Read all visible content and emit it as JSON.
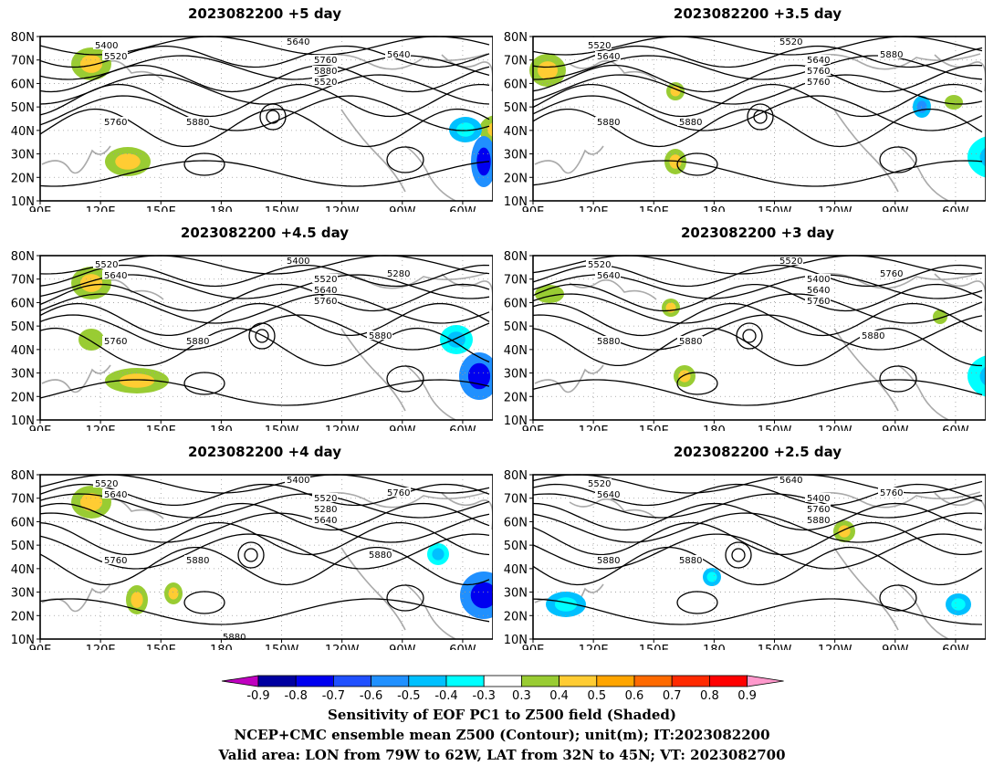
{
  "panels": [
    {
      "title": "2023082200 +5 day",
      "lead_days": 5.0,
      "contour_labels": [
        "5400",
        "5520",
        "5640",
        "5760",
        "5880",
        "5520",
        "5640",
        "5760",
        "5880"
      ]
    },
    {
      "title": "2023082200 +3.5 day",
      "lead_days": 3.5,
      "contour_labels": [
        "5520",
        "5640",
        "5520",
        "5640",
        "5760",
        "5760",
        "5880",
        "5880",
        "5880"
      ]
    },
    {
      "title": "2023082200 +4.5 day",
      "lead_days": 4.5,
      "contour_labels": [
        "5520",
        "5640",
        "5400",
        "5520",
        "5640",
        "5760",
        "5280",
        "5760",
        "5880",
        "5880"
      ]
    },
    {
      "title": "2023082200 +3 day",
      "lead_days": 3.0,
      "contour_labels": [
        "5520",
        "5640",
        "5520",
        "5400",
        "5640",
        "5760",
        "5760",
        "5880",
        "5880",
        "5880"
      ]
    },
    {
      "title": "2023082200 +4 day",
      "lead_days": 4.0,
      "contour_labels": [
        "5520",
        "5640",
        "5400",
        "5520",
        "5280",
        "5640",
        "5760",
        "5760",
        "5880",
        "5880",
        "5880"
      ]
    },
    {
      "title": "2023082200 +2.5 day",
      "lead_days": 2.5,
      "contour_labels": [
        "5520",
        "5640",
        "5640",
        "5400",
        "5760",
        "5880",
        "5760",
        "5880",
        "5880"
      ]
    }
  ],
  "axes": {
    "lon_ticks": [
      "90E",
      "120E",
      "150E",
      "180",
      "150W",
      "120W",
      "90W",
      "60W"
    ],
    "lat_ticks": [
      "80N",
      "70N",
      "60N",
      "50N",
      "40N",
      "30N",
      "20N",
      "10N"
    ]
  },
  "colorbar": {
    "ticks": [
      "-0.9",
      "-0.8",
      "-0.7",
      "-0.6",
      "-0.5",
      "-0.4",
      "-0.3",
      "0.3",
      "0.4",
      "0.5",
      "0.6",
      "0.7",
      "0.8",
      "0.9"
    ],
    "colors": [
      "#c000c0",
      "#0000a0",
      "#0000f0",
      "#2050ff",
      "#2090ff",
      "#00c0ff",
      "#00ffff",
      "#ffffff",
      "#99cc33",
      "#ffcc33",
      "#ffa500",
      "#ff6a00",
      "#ff2a00",
      "#ff0000",
      "#ff99cc"
    ]
  },
  "captions": {
    "line1": "Sensitivity of EOF PC1 to Z500 field (Shaded)",
    "line2": "NCEP+CMC ensemble mean Z500 (Contour); unit(m); IT:2023082200",
    "line3": "Valid area: LON from 79W to 62W, LAT from 32N to 45N; VT: 2023082700"
  }
}
